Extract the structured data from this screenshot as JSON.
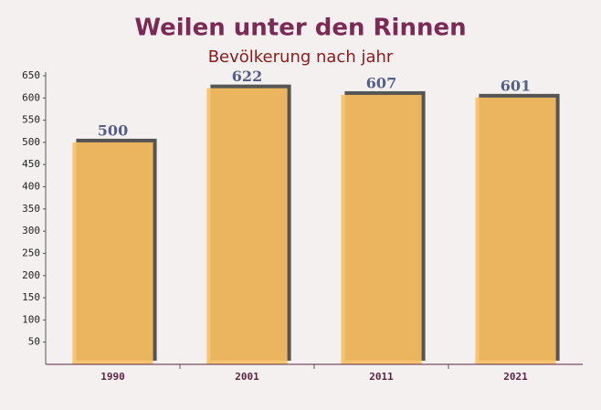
{
  "chart_data": {
    "type": "bar",
    "title": "Weilen unter den Rinnen",
    "subtitle": "Bevölkerung nach jahr",
    "categories": [
      "1990",
      "2001",
      "2011",
      "2021"
    ],
    "values": [
      500,
      622,
      607,
      601
    ],
    "color": "#fcc060",
    "ylim": [
      0,
      650
    ],
    "yticks": [
      50,
      100,
      150,
      200,
      250,
      300,
      350,
      400,
      450,
      500,
      550,
      600,
      650
    ],
    "grid": false
  }
}
